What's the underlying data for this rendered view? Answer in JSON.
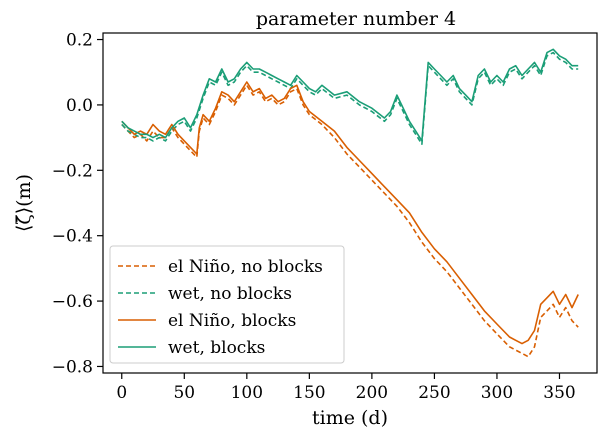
{
  "chart_data": {
    "type": "line",
    "title": "parameter number 4",
    "xlabel": "time (d)",
    "ylabel": "⟨ζ̄⟩(m)",
    "xlim": [
      -15,
      380
    ],
    "ylim": [
      -0.82,
      0.22
    ],
    "xticks": [
      0,
      50,
      100,
      150,
      200,
      250,
      300,
      350
    ],
    "yticks": [
      0.2,
      0.0,
      -0.2,
      -0.4,
      -0.6,
      -0.8
    ],
    "ytick_labels": [
      "0.2",
      "0.0",
      "−0.2",
      "−0.4",
      "−0.6",
      "−0.8"
    ],
    "grid": false,
    "legend_position": "lower-left",
    "series": [
      {
        "name": "el Niño, no blocks",
        "color": "#d95f02",
        "dash": "dashed",
        "x": [
          0,
          5,
          10,
          15,
          20,
          25,
          30,
          35,
          40,
          45,
          50,
          55,
          60,
          62,
          65,
          70,
          75,
          80,
          85,
          90,
          95,
          100,
          105,
          110,
          115,
          120,
          125,
          130,
          135,
          140,
          145,
          150,
          160,
          170,
          180,
          190,
          200,
          210,
          220,
          230,
          240,
          250,
          260,
          270,
          280,
          290,
          300,
          310,
          315,
          320,
          325,
          330,
          335,
          340,
          345,
          350,
          355,
          360,
          365
        ],
        "y": [
          -0.06,
          -0.08,
          -0.1,
          -0.09,
          -0.11,
          -0.08,
          -0.1,
          -0.1,
          -0.07,
          -0.1,
          -0.12,
          -0.14,
          -0.16,
          -0.08,
          -0.04,
          -0.06,
          -0.02,
          0.03,
          0.02,
          0.0,
          0.03,
          0.06,
          0.03,
          0.04,
          0.01,
          0.02,
          0.0,
          0.01,
          0.04,
          0.05,
          0.0,
          -0.03,
          -0.06,
          -0.1,
          -0.15,
          -0.19,
          -0.23,
          -0.27,
          -0.31,
          -0.36,
          -0.42,
          -0.47,
          -0.51,
          -0.56,
          -0.61,
          -0.66,
          -0.7,
          -0.74,
          -0.75,
          -0.76,
          -0.77,
          -0.74,
          -0.65,
          -0.63,
          -0.61,
          -0.65,
          -0.62,
          -0.66,
          -0.68
        ]
      },
      {
        "name": "wet, no blocks",
        "color": "#1b9e77",
        "dash": "dashed",
        "x": [
          0,
          5,
          10,
          15,
          20,
          25,
          30,
          35,
          40,
          45,
          50,
          55,
          60,
          65,
          70,
          75,
          80,
          85,
          90,
          95,
          100,
          105,
          110,
          115,
          120,
          125,
          130,
          135,
          140,
          145,
          150,
          155,
          160,
          170,
          180,
          190,
          200,
          210,
          215,
          220,
          225,
          230,
          235,
          240,
          245,
          250,
          255,
          260,
          265,
          270,
          275,
          280,
          285,
          290,
          295,
          300,
          305,
          310,
          315,
          320,
          325,
          330,
          335,
          340,
          345,
          350,
          355,
          360,
          365
        ],
        "y": [
          -0.06,
          -0.08,
          -0.09,
          -0.1,
          -0.1,
          -0.11,
          -0.1,
          -0.11,
          -0.08,
          -0.06,
          -0.05,
          -0.08,
          -0.04,
          0.02,
          0.07,
          0.06,
          0.1,
          0.06,
          0.07,
          0.1,
          0.12,
          0.1,
          0.1,
          0.09,
          0.08,
          0.07,
          0.06,
          0.05,
          0.08,
          0.06,
          0.04,
          0.03,
          0.05,
          0.02,
          0.03,
          0.0,
          -0.02,
          -0.05,
          -0.03,
          0.02,
          -0.02,
          -0.06,
          -0.09,
          -0.12,
          0.12,
          0.1,
          0.08,
          0.06,
          0.08,
          0.04,
          0.02,
          0.0,
          0.08,
          0.1,
          0.06,
          0.08,
          0.06,
          0.1,
          0.11,
          0.08,
          0.1,
          0.12,
          0.09,
          0.15,
          0.16,
          0.14,
          0.13,
          0.11,
          0.11
        ]
      },
      {
        "name": "el Niño, blocks",
        "color": "#d95f02",
        "dash": "solid",
        "x": [
          0,
          5,
          10,
          15,
          20,
          25,
          30,
          35,
          40,
          45,
          50,
          55,
          60,
          62,
          65,
          70,
          75,
          80,
          85,
          90,
          95,
          100,
          105,
          110,
          115,
          120,
          125,
          130,
          135,
          140,
          145,
          150,
          160,
          170,
          180,
          190,
          200,
          210,
          220,
          230,
          240,
          250,
          260,
          270,
          280,
          290,
          300,
          310,
          315,
          320,
          325,
          330,
          335,
          340,
          345,
          350,
          355,
          360,
          365
        ],
        "y": [
          -0.05,
          -0.07,
          -0.09,
          -0.08,
          -0.09,
          -0.06,
          -0.08,
          -0.09,
          -0.06,
          -0.09,
          -0.11,
          -0.13,
          -0.15,
          -0.07,
          -0.03,
          -0.05,
          -0.01,
          0.04,
          0.03,
          0.01,
          0.04,
          0.07,
          0.04,
          0.05,
          0.02,
          0.03,
          0.01,
          0.02,
          0.05,
          0.06,
          0.01,
          -0.02,
          -0.05,
          -0.08,
          -0.13,
          -0.17,
          -0.21,
          -0.25,
          -0.29,
          -0.33,
          -0.39,
          -0.44,
          -0.48,
          -0.53,
          -0.58,
          -0.63,
          -0.67,
          -0.71,
          -0.72,
          -0.73,
          -0.72,
          -0.69,
          -0.61,
          -0.59,
          -0.57,
          -0.61,
          -0.58,
          -0.62,
          -0.58
        ]
      },
      {
        "name": "wet, blocks",
        "color": "#1b9e77",
        "dash": "solid",
        "x": [
          0,
          5,
          10,
          15,
          20,
          25,
          30,
          35,
          40,
          45,
          50,
          55,
          60,
          65,
          70,
          75,
          80,
          85,
          90,
          95,
          100,
          105,
          110,
          115,
          120,
          125,
          130,
          135,
          140,
          145,
          150,
          155,
          160,
          170,
          180,
          190,
          200,
          210,
          215,
          220,
          225,
          230,
          235,
          240,
          245,
          250,
          255,
          260,
          265,
          270,
          275,
          280,
          285,
          290,
          295,
          300,
          305,
          310,
          315,
          320,
          325,
          330,
          335,
          340,
          345,
          350,
          355,
          360,
          365
        ],
        "y": [
          -0.05,
          -0.07,
          -0.08,
          -0.09,
          -0.09,
          -0.1,
          -0.09,
          -0.1,
          -0.07,
          -0.05,
          -0.04,
          -0.07,
          -0.03,
          0.03,
          0.08,
          0.07,
          0.11,
          0.07,
          0.08,
          0.11,
          0.13,
          0.11,
          0.11,
          0.1,
          0.09,
          0.08,
          0.07,
          0.06,
          0.09,
          0.07,
          0.05,
          0.04,
          0.06,
          0.03,
          0.04,
          0.01,
          -0.01,
          -0.04,
          -0.02,
          0.03,
          -0.01,
          -0.05,
          -0.08,
          -0.11,
          0.13,
          0.11,
          0.09,
          0.07,
          0.09,
          0.05,
          0.03,
          0.01,
          0.09,
          0.11,
          0.07,
          0.09,
          0.07,
          0.11,
          0.12,
          0.09,
          0.11,
          0.13,
          0.1,
          0.16,
          0.17,
          0.15,
          0.14,
          0.12,
          0.12
        ]
      }
    ]
  }
}
